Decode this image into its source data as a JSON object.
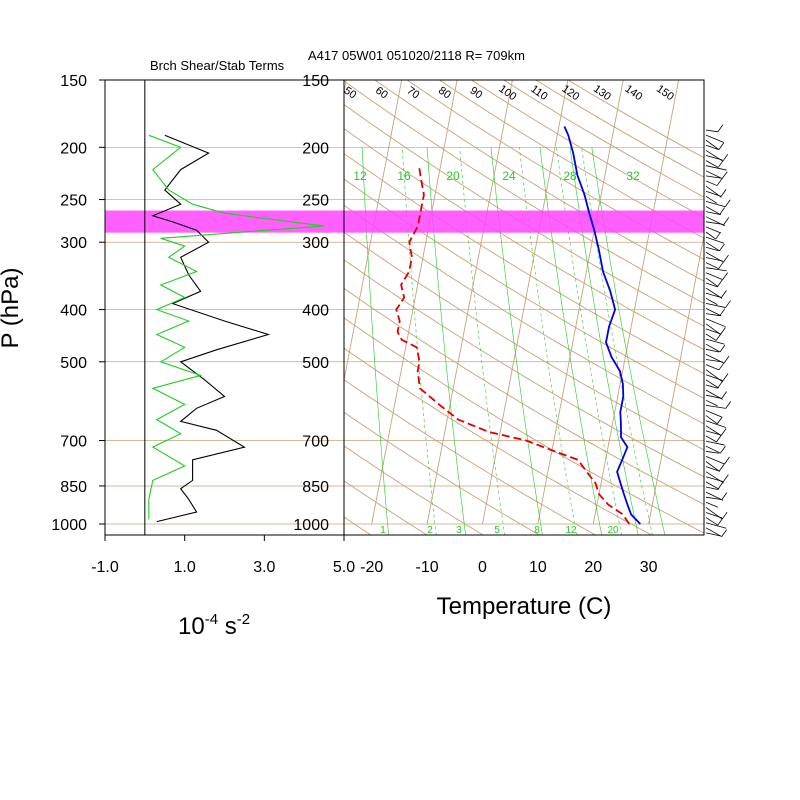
{
  "header": {
    "left_title": "Brch Shear/Stab Terms",
    "right_title": "A417 05W01 051020/2118 R= 709km"
  },
  "colors": {
    "grid": "#c8a27a",
    "shear_line": "#000000",
    "stab_line": "#22cc22",
    "highlight_band": "#ff44ff",
    "temperature": "#0000dd",
    "dewpoint": "#dd0000",
    "mixing_ratio": "#22cc22"
  },
  "chart_data": [
    {
      "type": "line",
      "name": "branch-shear-stab-profile",
      "title": "Brch Shear/Stab Terms",
      "ylabel": "P (hPa)",
      "xlabel": "10",
      "xlabel_exp": "-4",
      "xlabel_unit": "s",
      "xlabel_unit_exp": "-2",
      "xlim": [
        -1.0,
        5.0
      ],
      "ylim": [
        1000,
        150
      ],
      "yscale": "log",
      "x_ticks": [
        "-1.0",
        "1.0",
        "3.0",
        "5.0"
      ],
      "pressure_ticks": [
        "150",
        "200",
        "250",
        "300",
        "400",
        "500",
        "700",
        "850",
        "1000"
      ],
      "highlight_band_hpa": [
        262,
        288
      ],
      "series": [
        {
          "points": [
            [
              0.5,
              190
            ],
            [
              1.1,
              198
            ],
            [
              1.6,
              205
            ],
            [
              0.9,
              220
            ],
            [
              0.5,
              240
            ],
            [
              0.9,
              255
            ],
            [
              0.2,
              268
            ],
            [
              0.7,
              275
            ],
            [
              1.3,
              285
            ],
            [
              1.6,
              300
            ],
            [
              0.9,
              320
            ],
            [
              1.1,
              345
            ],
            [
              1.4,
              370
            ],
            [
              0.7,
              390
            ],
            [
              2.0,
              420
            ],
            [
              3.1,
              445
            ],
            [
              1.8,
              475
            ],
            [
              0.9,
              500
            ],
            [
              1.5,
              540
            ],
            [
              2.0,
              580
            ],
            [
              1.3,
              610
            ],
            [
              0.9,
              645
            ],
            [
              1.8,
              670
            ],
            [
              2.5,
              720
            ],
            [
              1.2,
              760
            ],
            [
              1.2,
              830
            ],
            [
              0.9,
              860
            ],
            [
              1.1,
              900
            ],
            [
              1.3,
              950
            ],
            [
              0.3,
              990
            ]
          ]
        },
        {
          "points": [
            [
              0.1,
              190
            ],
            [
              0.9,
              200
            ],
            [
              0.2,
              220
            ],
            [
              0.6,
              240
            ],
            [
              1.2,
              255
            ],
            [
              2.0,
              265
            ],
            [
              4.5,
              280
            ],
            [
              2.5,
              287
            ],
            [
              0.4,
              295
            ],
            [
              1.0,
              305
            ],
            [
              0.6,
              320
            ],
            [
              1.3,
              340
            ],
            [
              0.4,
              360
            ],
            [
              1.0,
              380
            ],
            [
              0.3,
              400
            ],
            [
              1.1,
              420
            ],
            [
              0.3,
              445
            ],
            [
              1.0,
              470
            ],
            [
              0.4,
              500
            ],
            [
              1.4,
              530
            ],
            [
              0.2,
              560
            ],
            [
              1.0,
              600
            ],
            [
              0.3,
              640
            ],
            [
              0.9,
              680
            ],
            [
              0.2,
              720
            ],
            [
              1.0,
              780
            ],
            [
              0.2,
              830
            ],
            [
              0.1,
              900
            ],
            [
              0.1,
              980
            ]
          ]
        }
      ]
    },
    {
      "type": "line",
      "name": "skew-t-sounding",
      "xlabel": "Temperature (C)",
      "xlim": [
        -25,
        40
      ],
      "x_ticks": [
        "-20",
        "-10",
        "0",
        "10",
        "20",
        "30"
      ],
      "pressure_ticks": [
        "150",
        "200",
        "250",
        "300",
        "400",
        "500",
        "700",
        "850",
        "1000"
      ],
      "ylim": [
        1000,
        150
      ],
      "dry_adiabat_labels": [
        "50",
        "60",
        "70",
        "80",
        "90",
        "100",
        "110",
        "120",
        "130",
        "140",
        "150"
      ],
      "mixing_ratio_labels_top": [
        "12",
        "16",
        "20",
        "24",
        "28",
        "32"
      ],
      "mixing_ratio_labels_bottom": [
        "1",
        "2",
        "3",
        "5",
        "8",
        "12",
        "20"
      ],
      "series": [
        {
          "name": "Temperature",
          "style": "solid",
          "points": [
            [
              28.5,
              1000
            ],
            [
              26.5,
              960
            ],
            [
              25.5,
              920
            ],
            [
              24.5,
              880
            ],
            [
              23.5,
              840
            ],
            [
              22.5,
              800
            ],
            [
              23,
              760
            ],
            [
              23.5,
              720
            ],
            [
              22,
              690
            ],
            [
              21.5,
              650
            ],
            [
              21,
              620
            ],
            [
              21,
              580
            ],
            [
              20.5,
              550
            ],
            [
              19.5,
              520
            ],
            [
              17.5,
              490
            ],
            [
              16,
              460
            ],
            [
              16,
              430
            ],
            [
              16.5,
              400
            ],
            [
              15,
              370
            ],
            [
              13,
              340
            ],
            [
              11.5,
              310
            ],
            [
              10,
              285
            ],
            [
              8.5,
              265
            ],
            [
              7,
              245
            ],
            [
              5,
              225
            ],
            [
              3.5,
              205
            ],
            [
              2,
              190
            ],
            [
              1,
              183
            ]
          ]
        },
        {
          "name": "Dewpoint",
          "style": "dashed",
          "points": [
            [
              26.5,
              1000
            ],
            [
              25,
              960
            ],
            [
              22,
              920
            ],
            [
              20,
              880
            ],
            [
              19,
              840
            ],
            [
              17,
              800
            ],
            [
              15,
              760
            ],
            [
              10,
              730
            ],
            [
              5,
              700
            ],
            [
              -2,
              675
            ],
            [
              -8,
              640
            ],
            [
              -12,
              600
            ],
            [
              -16,
              560
            ],
            [
              -17,
              520
            ],
            [
              -17,
              500
            ],
            [
              -18,
              470
            ],
            [
              -21,
              455
            ],
            [
              -22,
              440
            ],
            [
              -22,
              420
            ],
            [
              -23,
              400
            ],
            [
              -22,
              380
            ],
            [
              -23,
              360
            ],
            [
              -22,
              340
            ],
            [
              -22,
              320
            ],
            [
              -23,
              300
            ],
            [
              -22,
              280
            ],
            [
              -22,
              260
            ],
            [
              -22,
              245
            ],
            [
              -23,
              230
            ],
            [
              -24,
              215
            ]
          ]
        }
      ]
    }
  ]
}
